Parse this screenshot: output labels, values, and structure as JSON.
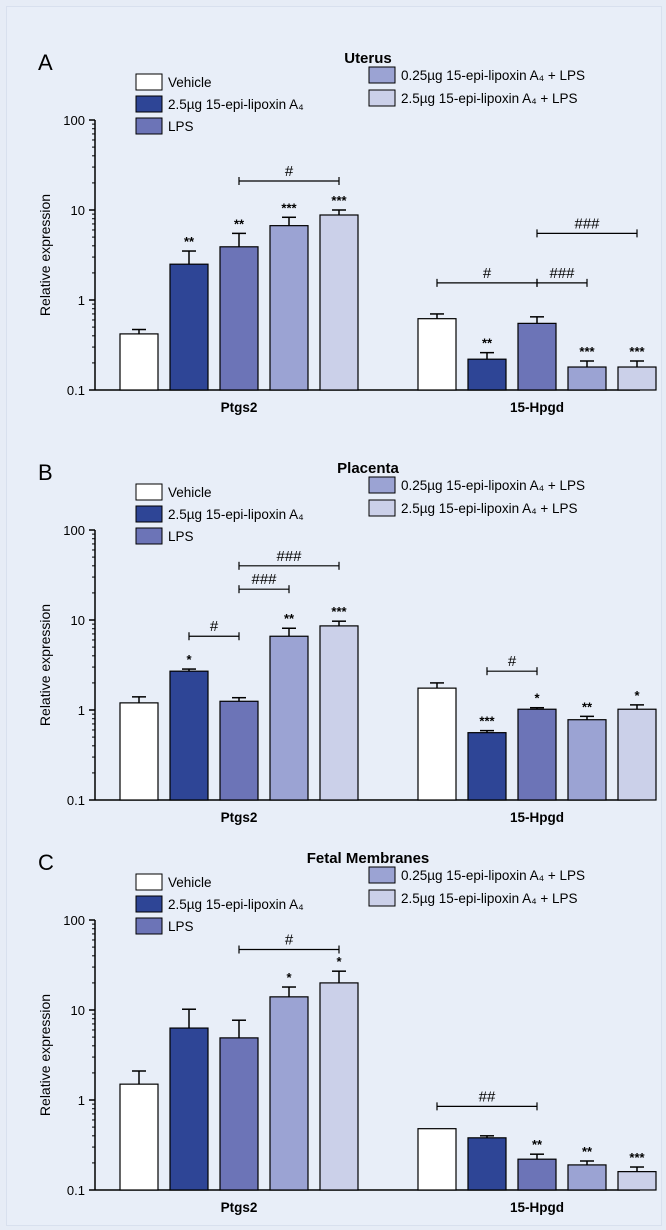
{
  "colors": {
    "background": "#e6ecf6",
    "vehicle": "#ffffff",
    "dose_high_lipoxin": "#2e4596",
    "lps": "#6c74b7",
    "low_lipoxin_lps": "#9ba3d3",
    "high_lipoxin_lps": "#cbd0e9"
  },
  "legend": {
    "entries": [
      "Vehicle",
      "2.5µg 15-epi-lipoxin A₄",
      "LPS",
      "0.25µg 15-epi-lipoxin A₄ + LPS",
      "2.5µg 15-epi-lipoxin A₄ + LPS"
    ]
  },
  "chart_data": [
    {
      "type": "bar",
      "panel_label": "A",
      "title": "Uterus",
      "ylabel": "Relative expression",
      "yscale": "log",
      "ylim": [
        0.1,
        100
      ],
      "yticks": [
        "0.1",
        "1",
        "10",
        "100"
      ],
      "groups": [
        "Ptgs2",
        "15-Hpgd"
      ],
      "series": [
        {
          "name": "Vehicle",
          "values": [
            0.42,
            0.62
          ],
          "errors": [
            0.05,
            0.08
          ]
        },
        {
          "name": "2.5µg 15-epi-lipoxin A₄",
          "values": [
            2.5,
            0.22
          ],
          "errors": [
            1.0,
            0.04
          ]
        },
        {
          "name": "LPS",
          "values": [
            3.9,
            0.55
          ],
          "errors": [
            1.6,
            0.1
          ]
        },
        {
          "name": "0.25µg 15-epi-lipoxin A₄ + LPS",
          "values": [
            6.7,
            0.18
          ],
          "errors": [
            1.6,
            0.03
          ]
        },
        {
          "name": "2.5µg 15-epi-lipoxin A₄ + LPS",
          "values": [
            8.8,
            0.18
          ],
          "errors": [
            1.2,
            0.03
          ]
        }
      ],
      "stars": [
        [
          "",
          ""
        ],
        [
          "**",
          "**"
        ],
        [
          "**",
          ""
        ],
        [
          "***",
          "***"
        ],
        [
          "***",
          "***"
        ]
      ],
      "comparisons": [
        {
          "group": 0,
          "from": 2,
          "to": 4,
          "y": 21,
          "label": "#"
        },
        {
          "group": 1,
          "from": 0,
          "to": 2,
          "y": 1.55,
          "label": "#"
        },
        {
          "group": 1,
          "from": 2,
          "to": 3,
          "y": 1.55,
          "label": "###"
        },
        {
          "group": 1,
          "from": 2,
          "to": 4,
          "y": 5.5,
          "label": "###"
        }
      ]
    },
    {
      "type": "bar",
      "panel_label": "B",
      "title": "Placenta",
      "ylabel": "Relative expression",
      "yscale": "log",
      "ylim": [
        0.1,
        100
      ],
      "yticks": [
        "0.1",
        "1",
        "10",
        "100"
      ],
      "groups": [
        "Ptgs2",
        "15-Hpgd"
      ],
      "series": [
        {
          "name": "Vehicle",
          "values": [
            1.2,
            1.75
          ],
          "errors": [
            0.2,
            0.25
          ]
        },
        {
          "name": "2.5µg 15-epi-lipoxin A₄",
          "values": [
            2.7,
            0.56
          ],
          "errors": [
            0.15,
            0.03
          ]
        },
        {
          "name": "LPS",
          "values": [
            1.25,
            1.02
          ],
          "errors": [
            0.12,
            0.04
          ]
        },
        {
          "name": "0.25µg 15-epi-lipoxin A₄ + LPS",
          "values": [
            6.6,
            0.78
          ],
          "errors": [
            1.5,
            0.07
          ]
        },
        {
          "name": "2.5µg 15-epi-lipoxin A₄ + LPS",
          "values": [
            8.6,
            1.02
          ],
          "errors": [
            1.1,
            0.12
          ]
        }
      ],
      "stars": [
        [
          "",
          ""
        ],
        [
          "*",
          "***"
        ],
        [
          "",
          "*"
        ],
        [
          "**",
          "**"
        ],
        [
          "***",
          "*"
        ]
      ],
      "comparisons": [
        {
          "group": 0,
          "from": 1,
          "to": 2,
          "y": 6.6,
          "label": "#"
        },
        {
          "group": 0,
          "from": 2,
          "to": 3,
          "y": 22,
          "label": "###"
        },
        {
          "group": 0,
          "from": 2,
          "to": 4,
          "y": 40,
          "label": "###"
        },
        {
          "group": 1,
          "from": 1,
          "to": 2,
          "y": 2.7,
          "label": "#"
        }
      ]
    },
    {
      "type": "bar",
      "panel_label": "C",
      "title": "Fetal Membranes",
      "ylabel": "Relative expression",
      "yscale": "log",
      "ylim": [
        0.1,
        100
      ],
      "yticks": [
        "0.1",
        "1",
        "10",
        "100"
      ],
      "groups": [
        "Ptgs2",
        "15-Hpgd"
      ],
      "series": [
        {
          "name": "Vehicle",
          "values": [
            1.5,
            0.48
          ],
          "errors": [
            0.6,
            0
          ]
        },
        {
          "name": "2.5µg 15-epi-lipoxin A₄",
          "values": [
            6.3,
            0.38
          ],
          "errors": [
            3.9,
            0.02
          ]
        },
        {
          "name": "LPS",
          "values": [
            4.9,
            0.22
          ],
          "errors": [
            2.8,
            0.03
          ]
        },
        {
          "name": "0.25µg 15-epi-lipoxin A₄ + LPS",
          "values": [
            14.0,
            0.19
          ],
          "errors": [
            4.0,
            0.02
          ]
        },
        {
          "name": "2.5µg 15-epi-lipoxin A₄ + LPS",
          "values": [
            20.0,
            0.16
          ],
          "errors": [
            7.0,
            0.02
          ]
        }
      ],
      "stars": [
        [
          "",
          ""
        ],
        [
          "",
          ""
        ],
        [
          "",
          "**"
        ],
        [
          "*",
          "**"
        ],
        [
          "*",
          "***"
        ]
      ],
      "comparisons": [
        {
          "group": 0,
          "from": 2,
          "to": 4,
          "y": 47,
          "label": "#"
        },
        {
          "group": 1,
          "from": 0,
          "to": 2,
          "y": 0.85,
          "label": "##"
        }
      ]
    }
  ]
}
